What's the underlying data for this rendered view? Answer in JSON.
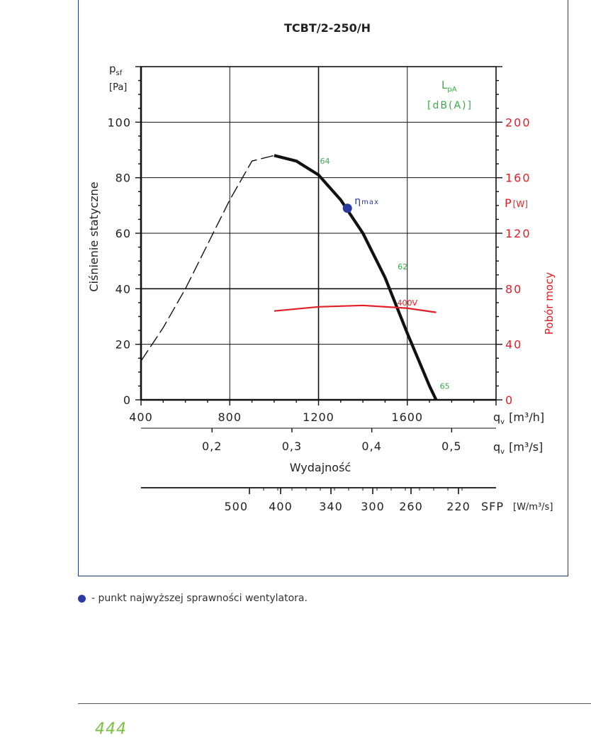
{
  "chart_data": {
    "type": "line",
    "title": "TCBT/2-250/H",
    "ylabel": "Ciśnienie statyczne",
    "ylabel_unit": {
      "symbol": "p",
      "subscript": "sf",
      "unit": "[Pa]"
    },
    "ylim": [
      0,
      120
    ],
    "yticks": [
      "0",
      "20",
      "40",
      "60",
      "80",
      "100"
    ],
    "xlabel": "Wydajność",
    "xlim": [
      400,
      2000
    ],
    "xticks_m3h": [
      "400",
      "800",
      "1200",
      "1600"
    ],
    "xaxis_m3h_label": {
      "symbol": "q",
      "subscript": "v",
      "unit": "[m³/h]"
    },
    "xticks_m3s": [
      "0,2",
      "0,3",
      "0,4",
      "0,5"
    ],
    "xaxis_m3s_label": {
      "symbol": "q",
      "subscript": "v",
      "unit": "[m³/s]"
    },
    "sfp_ticks": [
      "500",
      "400",
      "340",
      "300",
      "260",
      "220"
    ],
    "sfp_label": "SFP",
    "sfp_unit": "[W/m³/s]",
    "right_axis": {
      "title": "Pobór mocy",
      "unit_label": "P",
      "unit_bracket": "[W]",
      "range": [
        0,
        240
      ],
      "ticks": [
        "0",
        "40",
        "80",
        "120",
        "160",
        "200"
      ]
    },
    "lpa_label": {
      "main": "L",
      "sub": "pA",
      "unit": "[dB(A)]"
    },
    "grid": true,
    "series": [
      {
        "role": "fan-curve-unstable",
        "style": "dashed",
        "x": [
          400,
          500,
          600,
          700,
          800,
          900,
          1000
        ],
        "y": [
          14,
          26,
          40,
          56,
          72,
          86,
          88
        ]
      },
      {
        "role": "fan-curve",
        "style": "solid",
        "x": [
          1000,
          1100,
          1200,
          1300,
          1400,
          1500,
          1600,
          1700,
          1730
        ],
        "y": [
          88,
          86,
          81,
          72,
          60,
          44,
          24,
          5,
          0
        ]
      },
      {
        "role": "power-curve",
        "name": "400V",
        "color": "#e01f26",
        "axis": "right",
        "x": [
          1000,
          1200,
          1400,
          1600,
          1730
        ],
        "y": [
          64,
          67,
          68,
          66,
          63
        ]
      }
    ],
    "sound_labels": [
      {
        "text": "64",
        "x": 1200,
        "y": 85
      },
      {
        "text": "62",
        "x": 1550,
        "y": 47
      },
      {
        "text": "65",
        "x": 1740,
        "y": 4
      }
    ],
    "efficiency_point": {
      "x": 1330,
      "y": 69,
      "label": "η",
      "label_sub": "max"
    },
    "colors": {
      "curve": "#111111",
      "power": "#e01f26",
      "lpa": "#3daa4a",
      "efficiency": "#2b3aa0",
      "grid": "#111111"
    }
  },
  "legend": {
    "text": "- punkt najwyższej sprawności wentylatora."
  },
  "footer": {
    "page_number": "444"
  }
}
